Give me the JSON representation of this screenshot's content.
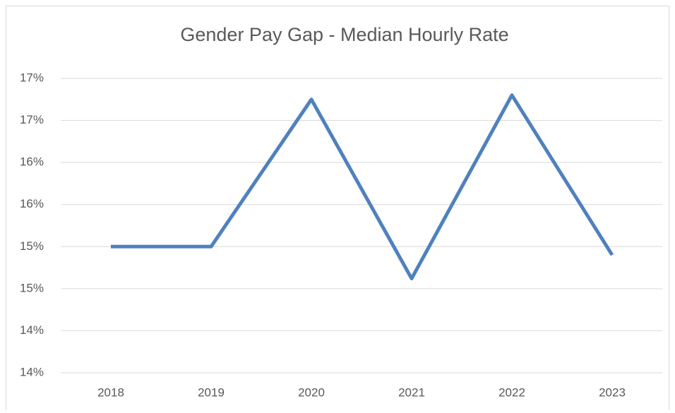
{
  "chart_data": {
    "type": "line",
    "title": "Gender Pay Gap - Median Hourly Rate",
    "categories": [
      "2018",
      "2019",
      "2020",
      "2021",
      "2022",
      "2023"
    ],
    "series": [
      {
        "name": "Median Hourly Rate",
        "color": "#4f81bd",
        "values": [
          15.0,
          15.0,
          16.75,
          14.62,
          16.8,
          14.9
        ]
      }
    ],
    "ylim": [
      13.5,
      17.0
    ],
    "yticks": [
      {
        "value": 13.5,
        "label": "14%"
      },
      {
        "value": 14.0,
        "label": "14%"
      },
      {
        "value": 14.5,
        "label": "15%"
      },
      {
        "value": 15.0,
        "label": "15%"
      },
      {
        "value": 15.5,
        "label": "16%"
      },
      {
        "value": 16.0,
        "label": "16%"
      },
      {
        "value": 16.5,
        "label": "17%"
      },
      {
        "value": 17.0,
        "label": "17%"
      }
    ],
    "grid": true
  }
}
